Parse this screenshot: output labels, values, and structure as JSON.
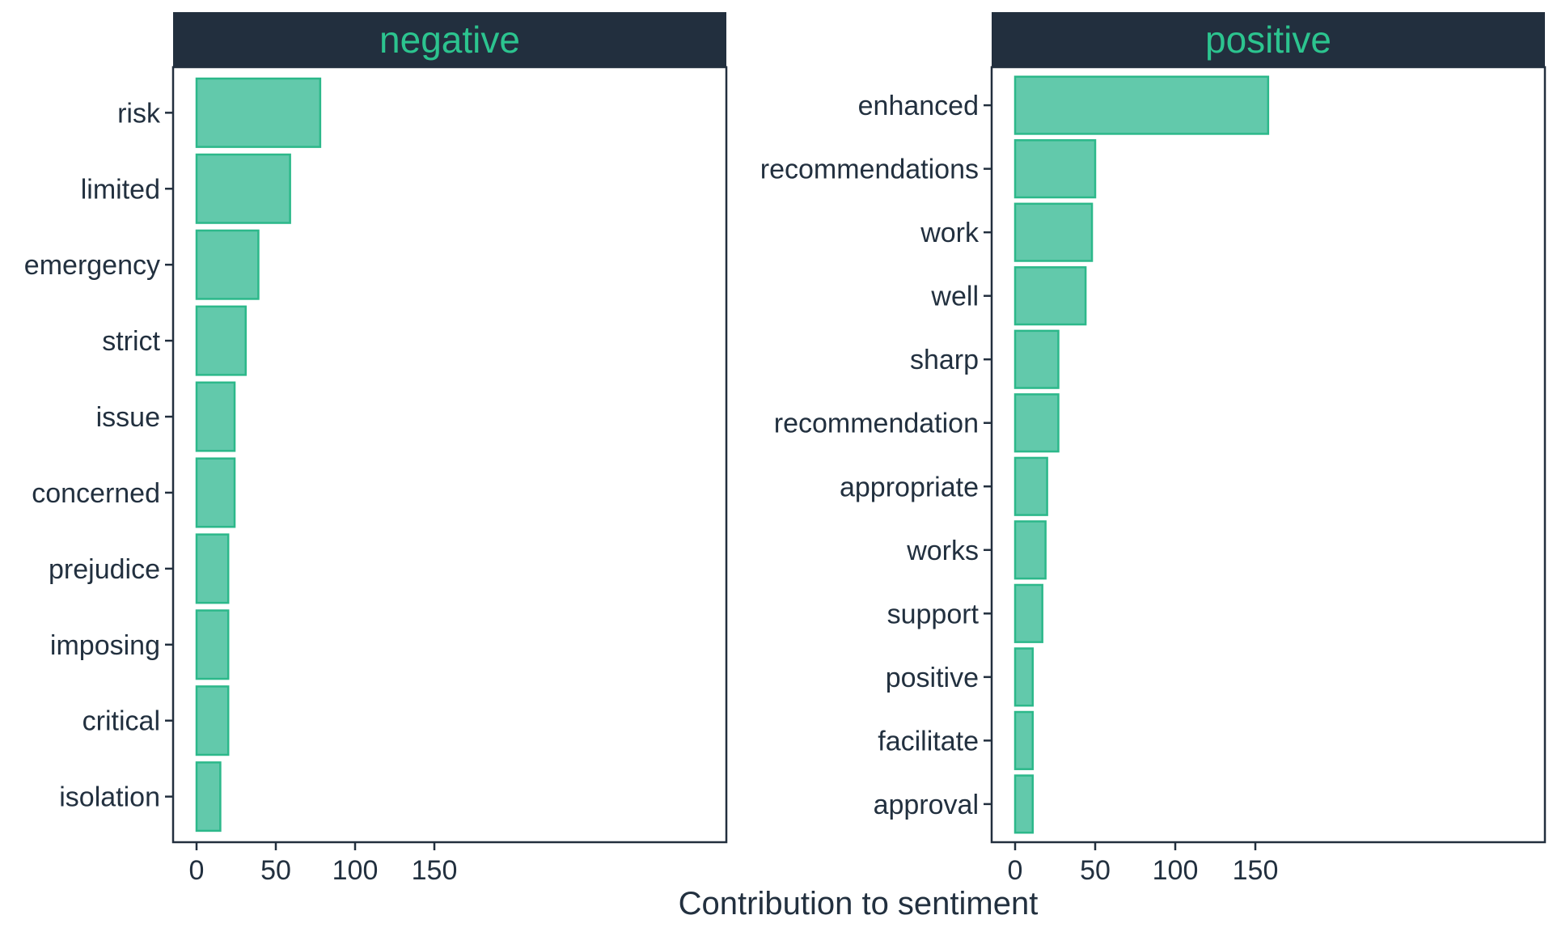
{
  "chart_data": {
    "type": "bar",
    "orientation": "horizontal",
    "xlabel": "Contribution to sentiment",
    "ylabel": "",
    "xlim": [
      0,
      160
    ],
    "x_ticks": [
      0,
      50,
      100,
      150
    ],
    "grid": false,
    "colors": {
      "bar_fill": "#62c9ab",
      "bar_stroke": "#2cb88a",
      "strip_bg": "#222f3e",
      "strip_text": "#2cc48f",
      "axis": "#222f3e",
      "text": "#22303f"
    },
    "panels": [
      {
        "name": "negative",
        "categories": [
          "risk",
          "limited",
          "emergency",
          "strict",
          "issue",
          "concerned",
          "prejudice",
          "imposing",
          "critical",
          "isolation"
        ],
        "values": [
          78,
          59,
          39,
          31,
          24,
          24,
          20,
          20,
          20,
          15
        ]
      },
      {
        "name": "positive",
        "categories": [
          "enhanced",
          "recommendations",
          "work",
          "well",
          "sharp",
          "recommendation",
          "appropriate",
          "works",
          "support",
          "positive",
          "facilitate",
          "approval"
        ],
        "values": [
          158,
          50,
          48,
          44,
          27,
          27,
          20,
          19,
          17,
          11,
          11,
          11
        ]
      }
    ]
  }
}
